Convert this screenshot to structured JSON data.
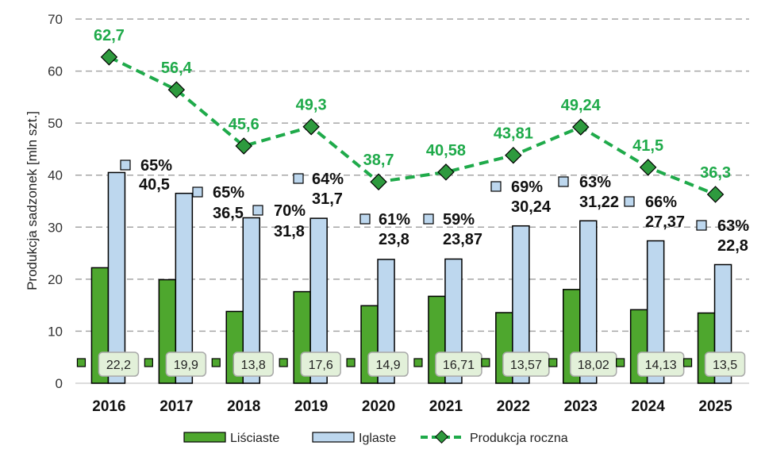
{
  "chart_data": {
    "type": "bar",
    "ylabel": "Produkcja sadzonek [mln szt.]",
    "ylim": [
      0,
      70
    ],
    "yticks": [
      0,
      10,
      20,
      30,
      40,
      50,
      60,
      70
    ],
    "grid": true,
    "legend_position": "bottom",
    "categories": [
      "2016",
      "2017",
      "2018",
      "2019",
      "2020",
      "2021",
      "2022",
      "2023",
      "2024",
      "2025"
    ],
    "series": [
      {
        "name": "Liściaste",
        "type": "bar",
        "color": "#4ea72e",
        "values": [
          22.2,
          19.9,
          13.8,
          17.6,
          14.9,
          16.71,
          13.57,
          18.02,
          14.13,
          13.5
        ],
        "labels": [
          "22,2",
          "19,9",
          "13,8",
          "17,6",
          "14,9",
          "16,71",
          "13,57",
          "18,02",
          "14,13",
          "13,5"
        ]
      },
      {
        "name": "Iglaste",
        "type": "bar",
        "color": "#bdd7ee",
        "values": [
          40.5,
          36.5,
          31.8,
          31.7,
          23.8,
          23.87,
          30.24,
          31.22,
          27.37,
          22.8
        ],
        "labels": [
          "40,5",
          "36,5",
          "31,8",
          "31,7",
          "23,8",
          "23,87",
          "30,24",
          "31,22",
          "27,37",
          "22,8"
        ],
        "share_labels": [
          "65%",
          "65%",
          "70%",
          "64%",
          "61%",
          "59%",
          "69%",
          "63%",
          "66%",
          "63%"
        ]
      },
      {
        "name": "Produkcja roczna",
        "type": "line",
        "color": "#1faa4a",
        "values": [
          62.7,
          56.4,
          45.6,
          49.3,
          38.7,
          40.58,
          43.81,
          49.24,
          41.5,
          36.3
        ],
        "labels": [
          "62,7",
          "56,4",
          "45,6",
          "49,3",
          "38,7",
          "40,58",
          "43,81",
          "49,24",
          "41,5",
          "36,3"
        ]
      }
    ]
  }
}
